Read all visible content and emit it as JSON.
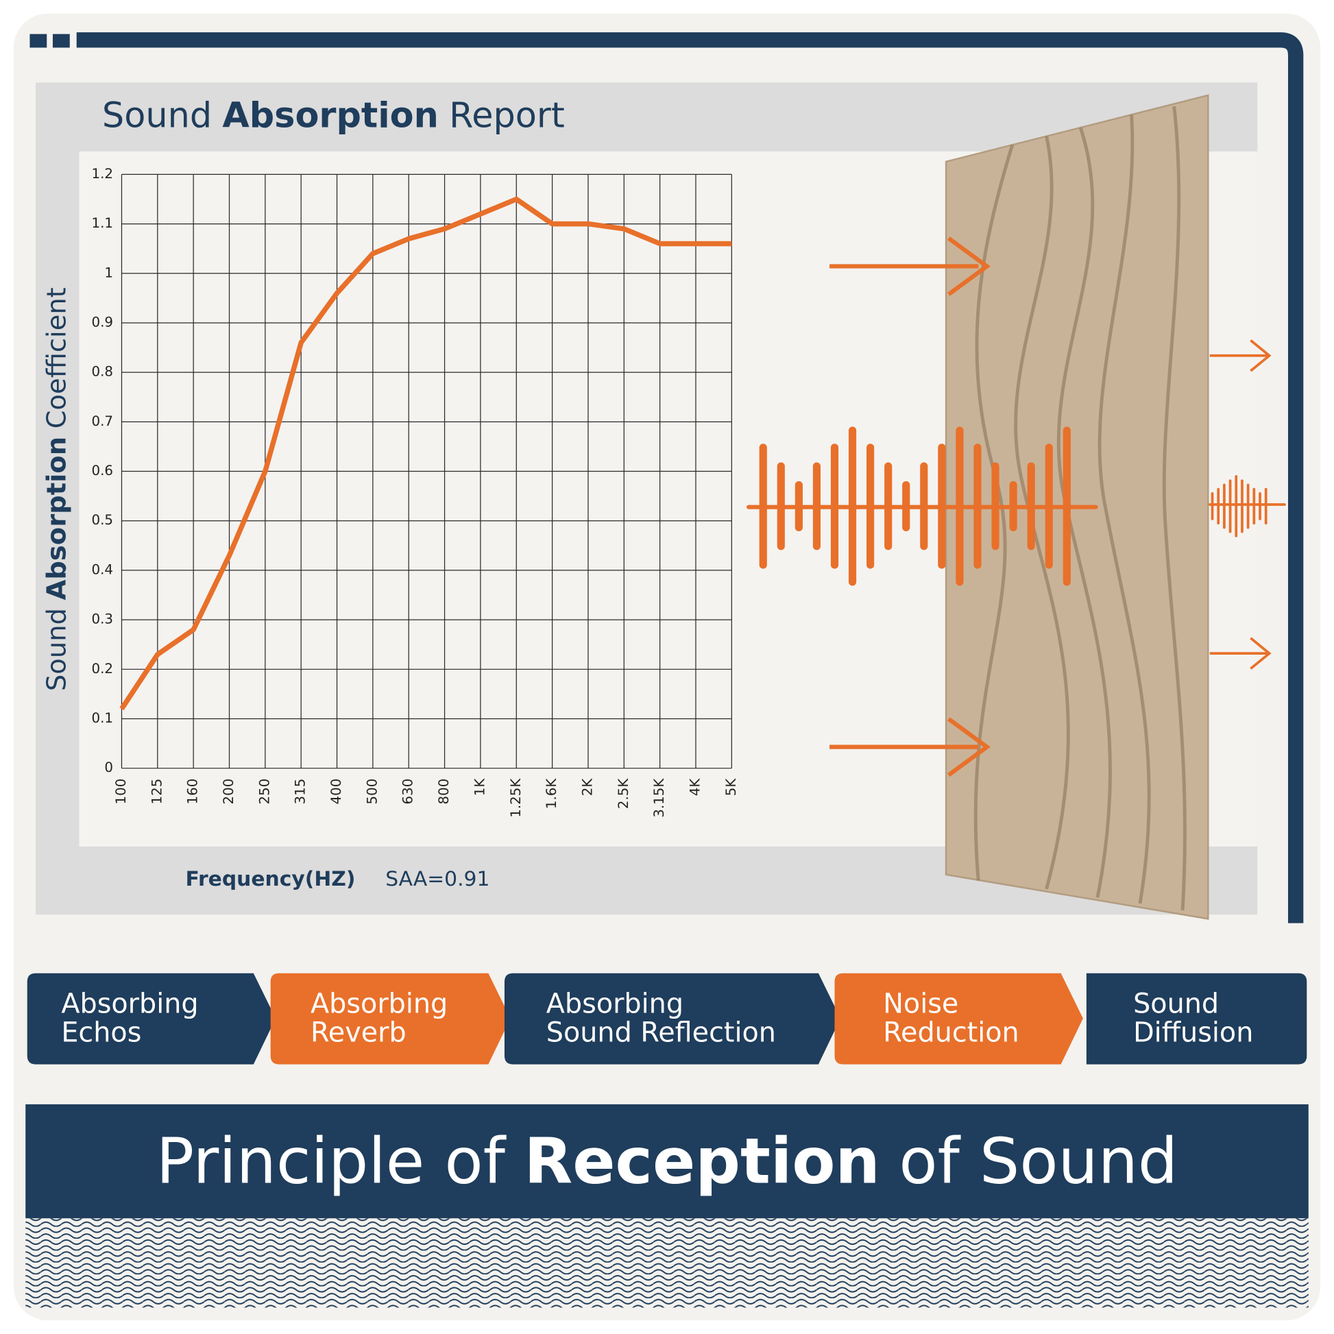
{
  "chart_data": {
    "type": "line",
    "title": [
      "Sound",
      "Absorption",
      "Report"
    ],
    "title_bold": 1,
    "ylabel": [
      "Sound",
      "Absorption",
      "Coefficient"
    ],
    "ylabel_bold": 1,
    "xlabel": "Frequency(HZ)",
    "annotation": "SAA=0.91",
    "categories": [
      "100",
      "125",
      "160",
      "200",
      "250",
      "315",
      "400",
      "500",
      "630",
      "800",
      "1K",
      "1.25K",
      "1.6K",
      "2K",
      "2.5K",
      "3.15K",
      "4K",
      "5K"
    ],
    "series": [
      {
        "name": "Sound Absorption Coefficient",
        "color": "#e8702a",
        "values": [
          0.12,
          0.23,
          0.28,
          0.43,
          0.6,
          0.86,
          0.96,
          1.04,
          1.07,
          1.09,
          1.12,
          1.15,
          1.1,
          1.1,
          1.09,
          1.06,
          1.06,
          1.06
        ]
      }
    ],
    "ylim": [
      0,
      1.2
    ],
    "yticks": [
      0,
      0.1,
      0.2,
      0.3,
      0.4,
      0.5,
      0.6,
      0.7,
      0.8,
      0.9,
      1,
      1.1,
      1.2
    ],
    "grid": true
  },
  "features": [
    {
      "lines": [
        "Absorbing",
        "Echos"
      ],
      "color": "#1f3d5c"
    },
    {
      "lines": [
        "Absorbing",
        "Reverb"
      ],
      "color": "#e8702a"
    },
    {
      "lines": [
        "Absorbing",
        "Sound Reflection"
      ],
      "color": "#1f3d5c"
    },
    {
      "lines": [
        "Noise",
        "Reduction"
      ],
      "color": "#e8702a"
    },
    {
      "lines": [
        "Sound",
        "Diffusion"
      ],
      "color": "#1f3d5c"
    }
  ],
  "banner": {
    "parts": [
      "Principle of",
      "Reception",
      "of Sound"
    ],
    "bold": 1
  }
}
